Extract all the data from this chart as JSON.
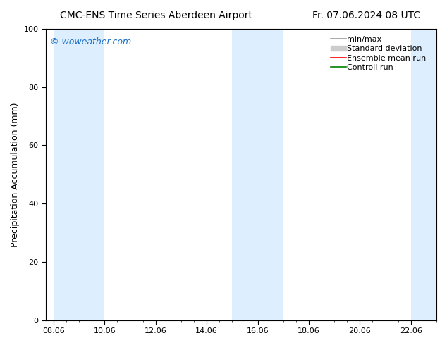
{
  "title_left": "CMC-ENS Time Series Aberdeen Airport",
  "title_right": "Fr. 07.06.2024 08 UTC",
  "ylabel": "Precipitation Accumulation (mm)",
  "watermark": "© woweather.com",
  "ylim": [
    0,
    100
  ],
  "yticks": [
    0,
    20,
    40,
    60,
    80,
    100
  ],
  "x_labels": [
    "08.06",
    "10.06",
    "12.06",
    "14.06",
    "16.06",
    "18.06",
    "20.06",
    "22.06"
  ],
  "x_tick_positions": [
    0,
    2,
    4,
    6,
    8,
    10,
    12,
    14
  ],
  "x_min": -0.3,
  "x_max": 15.0,
  "shaded_bands": [
    [
      0.0,
      0.8
    ],
    [
      0.8,
      2.0
    ],
    [
      7.0,
      9.0
    ],
    [
      14.0,
      15.0
    ]
  ],
  "shaded_color": "#ddeeff",
  "legend_labels": [
    "min/max",
    "Standard deviation",
    "Ensemble mean run",
    "Controll run"
  ],
  "minmax_color": "#999999",
  "stddev_color": "#cccccc",
  "ensemble_color": "#ff0000",
  "control_color": "#008000",
  "bg_color": "#ffffff",
  "title_fontsize": 10,
  "watermark_color": "#1a6fc4",
  "watermark_fontsize": 9,
  "ylabel_fontsize": 9,
  "tick_fontsize": 8,
  "legend_fontsize": 8
}
